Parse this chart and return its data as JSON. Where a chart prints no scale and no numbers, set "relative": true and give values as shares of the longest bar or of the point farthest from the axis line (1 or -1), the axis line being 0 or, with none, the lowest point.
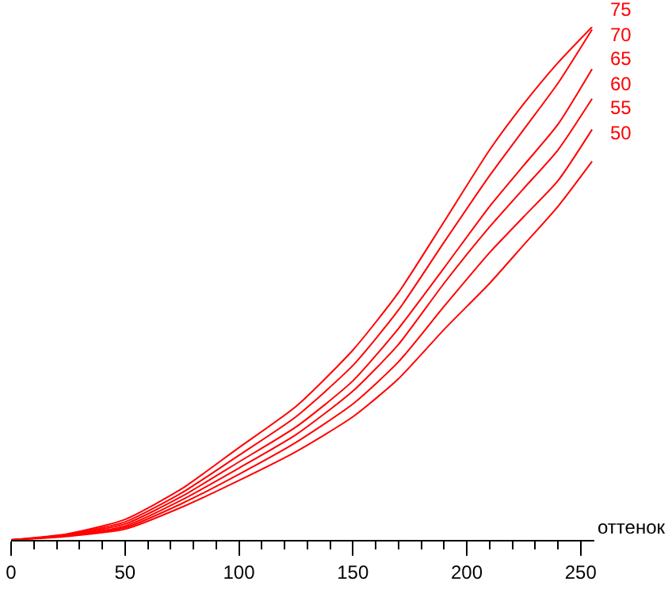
{
  "chart_data": {
    "type": "line",
    "relative": true,
    "xlabel": "оттенок",
    "xlim": [
      0,
      256
    ],
    "xticks": [
      0,
      {
        "value": 10,
        "label": null
      },
      {
        "value": 20,
        "label": null
      },
      {
        "value": 30,
        "label": null
      },
      {
        "value": 40,
        "label": null
      },
      50,
      {
        "value": 60,
        "label": null
      },
      {
        "value": 70,
        "label": null
      },
      {
        "value": 80,
        "label": null
      },
      {
        "value": 90,
        "label": null
      },
      100,
      {
        "value": 110,
        "label": null
      },
      {
        "value": 120,
        "label": null
      },
      {
        "value": 130,
        "label": null
      },
      {
        "value": 140,
        "label": null
      },
      150,
      {
        "value": 160,
        "label": null
      },
      {
        "value": 170,
        "label": null
      },
      {
        "value": 180,
        "label": null
      },
      {
        "value": 190,
        "label": null
      },
      200,
      {
        "value": 210,
        "label": null
      },
      {
        "value": 220,
        "label": null
      },
      {
        "value": 230,
        "label": null
      },
      {
        "value": 240,
        "label": null
      },
      250
    ],
    "x": [
      0,
      25,
      50,
      75,
      100,
      125,
      150,
      170,
      190,
      210,
      225,
      240,
      255
    ],
    "legend": false,
    "marker": "none",
    "line_style": "solid",
    "series": [
      {
        "name": "75",
        "color": "#ff0000",
        "values": [
          0,
          0.012,
          0.04,
          0.1,
          0.18,
          0.26,
          0.37,
          0.482,
          0.62,
          0.76,
          0.85,
          0.93,
          1
        ]
      },
      {
        "name": "70",
        "color": "#ff0000",
        "values": [
          null,
          0.011,
          0.035,
          0.092,
          0.165,
          0.24,
          0.34,
          0.448,
          0.58,
          0.71,
          0.8,
          0.89,
          0.995
        ]
      },
      {
        "name": "65",
        "color": "#ff0000",
        "values": [
          0,
          0.01,
          0.031,
          0.085,
          0.152,
          0.22,
          0.31,
          0.412,
          0.53,
          0.65,
          0.73,
          0.81,
          0.918
        ]
      },
      {
        "name": "60",
        "color": "#ff0000",
        "values": [
          0,
          0.009,
          0.027,
          0.078,
          0.14,
          0.205,
          0.29,
          0.381,
          0.5,
          0.61,
          0.685,
          0.76,
          0.86
        ]
      },
      {
        "name": "55",
        "color": "#ff0000",
        "values": [
          0,
          0.008,
          0.024,
          0.071,
          0.128,
          0.19,
          0.265,
          0.347,
          0.455,
          0.56,
          0.63,
          0.7,
          0.8
        ]
      },
      {
        "name": "50",
        "color": "#ff0000",
        "values": [
          0,
          0.007,
          0.021,
          0.064,
          0.116,
          0.172,
          0.24,
          0.314,
          0.41,
          0.5,
          0.575,
          0.65,
          0.738
        ]
      }
    ]
  }
}
